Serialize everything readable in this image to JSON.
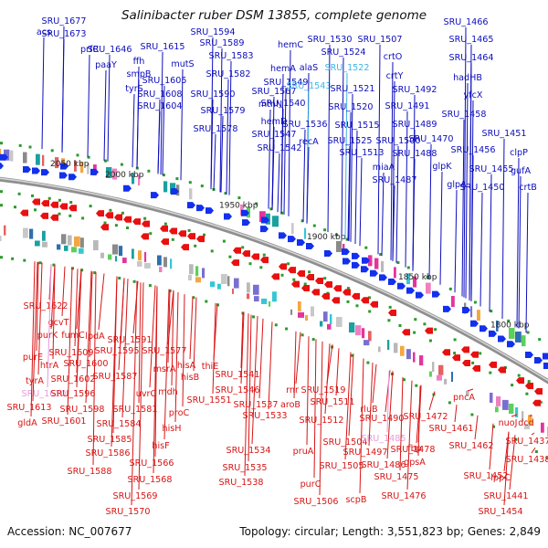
{
  "title": "Salinibacter ruber DSM 13855, complete genome",
  "accession": "Accession: NC_007677",
  "summary": "Topology: circular; Length: 3,551,823 bp; Genes: 2,849",
  "colors": {
    "top_label": "#0d0dbd",
    "top_label_hi": "#3bb6e6",
    "bottom_label": "#d81414",
    "bottom_label_hi": "#e79ad8",
    "forward_arrow": "#1230ee",
    "reverse_arrow": "#e81010",
    "backbone": "#8f8f8f",
    "tick": "#2c9b2c"
  },
  "ticks": [
    "2050 kbp",
    "2000 kbp",
    "1950 kbp",
    "1900 kbp",
    "1850 kbp",
    "1800 kbp"
  ],
  "top_labels": [
    "acs",
    "SRU_1677",
    "SRU_1673",
    "prfC",
    "SRU_1646",
    "paaY",
    "ffh",
    "smpB",
    "tyrS",
    "SRU_1615",
    "mutS",
    "SRU_1605",
    "SRU_1608",
    "SRU_1604",
    "SRU_1594",
    "SRU_1589",
    "SRU_1583",
    "SRU_1582",
    "SRU_1590",
    "SRU_1579",
    "SRU_1578",
    "SRU_1567",
    "mtnN",
    "hemC",
    "hemA",
    "alaS",
    "SRU_1549",
    "SRU_1543",
    "SRU_1540",
    "hemD",
    "SRU_1547",
    "SRU_1542",
    "SRU_1536",
    "recA",
    "SRU_1530",
    "SRU_1524",
    "SRU_1522",
    "SRU_1521",
    "SRU_1520",
    "SRU_1525",
    "SRU_1515",
    "SRU_1513",
    "SRU_1507",
    "crtO",
    "crtY",
    "SRU_1492",
    "SRU_1491",
    "SRU_1489",
    "SRU_1500",
    "SRU_1488",
    "miaA",
    "SRU_1487",
    "SRU_1466",
    "SRU_1465",
    "SRU_1464",
    "hadHB",
    "yfcX",
    "SRU_1458",
    "SRU_1451",
    "SRU_1470",
    "SRU_1456",
    "clpP",
    "glpK",
    "SRU_1455",
    "gufA",
    "glpA",
    "SRU_1450",
    "crtB"
  ],
  "bottom_labels": [
    "SRU_1622",
    "gcvT",
    "purK",
    "fumC",
    "lpdA",
    "purE",
    "SRU_1609",
    "SRU_1595",
    "SRU_1591",
    "SRU_1577",
    "htrA",
    "SRU_1600",
    "tyrA",
    "SRU_1602",
    "SRU_1587",
    "msrA",
    "hisA",
    "SRU_1610",
    "SRU_1596",
    "uvrC",
    "mdh",
    "hisB",
    "thiE",
    "SRU_1613",
    "SRU_1598",
    "SRU_1581",
    "SRU_1551",
    "gldA",
    "SRU_1601",
    "SRU_1584",
    "proC",
    "hisH",
    "SRU_1585",
    "hisF",
    "SRU_1586",
    "SRU_1566",
    "SRU_1588",
    "SRU_1568",
    "SRU_1569",
    "SRU_1570",
    "SRU_1541",
    "SRU_1546",
    "SRU_1537",
    "rnr",
    "SRU_1519",
    "aroB",
    "SRU_1511",
    "SRU_1533",
    "SRU_1512",
    "SRU_1534",
    "pruA",
    "SRU_1535",
    "SRU_1538",
    "SRU_1504",
    "SRU_1505",
    "purC",
    "SRU_1506",
    "rluB",
    "SRU_1490",
    "SRU_1472",
    "SRU_1485",
    "fbp",
    "SRU_1497",
    "SRU_1478",
    "SRU_1486",
    "gpsA",
    "SRU_1475",
    "scpB",
    "SRU_1476",
    "pncA",
    "SRU_1461",
    "SRU_1462",
    "SRU_1452",
    "SRU_1454",
    "nuoJ",
    "dcd",
    "SRU_1437",
    "SRU_1438",
    "lppC",
    "SRU_1441"
  ]
}
